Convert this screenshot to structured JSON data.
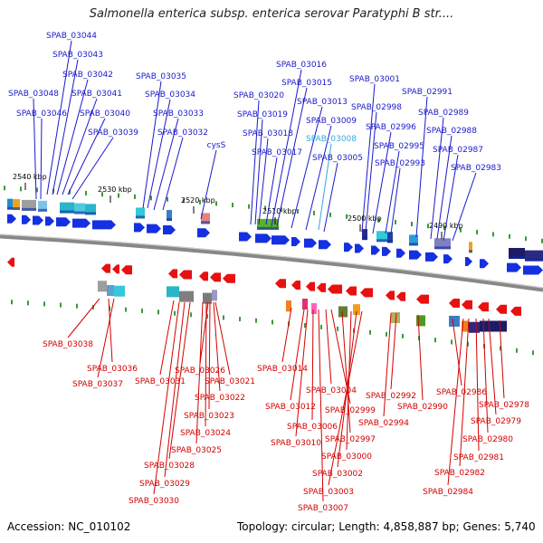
{
  "title": "Salmonella enterica subsp. enterica serovar Paratyphi B str....",
  "footer": {
    "accession": "Accession: NC_010102",
    "topology": "Topology: circular; Length: 4,858,887 bp; Genes: 5,740"
  },
  "colors": {
    "forward_label": "#1a1acc",
    "reverse_label": "#d40000",
    "highlight_label": "#33aadd",
    "backbone": "#888888"
  },
  "scale_ticks": [
    "2540 kbp",
    "2530 kbp",
    "2520 kbp",
    "2510 kbp",
    "2500 kbp",
    "2490 kbp"
  ],
  "forward_labels": [
    {
      "text": "SPAB_03044"
    },
    {
      "text": "SPAB_03043"
    },
    {
      "text": "SPAB_03042"
    },
    {
      "text": "SPAB_03048"
    },
    {
      "text": "SPAB_03041"
    },
    {
      "text": "SPAB_03046"
    },
    {
      "text": "SPAB_03040"
    },
    {
      "text": "SPAB_03039"
    },
    {
      "text": "SPAB_03035"
    },
    {
      "text": "SPAB_03034"
    },
    {
      "text": "SPAB_03033"
    },
    {
      "text": "SPAB_03032"
    },
    {
      "text": "cysS"
    },
    {
      "text": "SPAB_03016"
    },
    {
      "text": "SPAB_03015"
    },
    {
      "text": "SPAB_03020"
    },
    {
      "text": "SPAB_03013"
    },
    {
      "text": "SPAB_03019"
    },
    {
      "text": "SPAB_03009"
    },
    {
      "text": "SPAB_03018"
    },
    {
      "text": "SPAB_03008",
      "highlight": true
    },
    {
      "text": "SPAB_03017"
    },
    {
      "text": "SPAB_03005"
    },
    {
      "text": "SPAB_03001"
    },
    {
      "text": "SPAB_02998"
    },
    {
      "text": "SPAB_02996"
    },
    {
      "text": "SPAB_02995"
    },
    {
      "text": "SPAB_02993"
    },
    {
      "text": "SPAB_02991"
    },
    {
      "text": "SPAB_02989"
    },
    {
      "text": "SPAB_02988"
    },
    {
      "text": "SPAB_02987"
    },
    {
      "text": "SPAB_02983"
    }
  ],
  "reverse_labels": [
    {
      "text": "SPAB_03038"
    },
    {
      "text": "SPAB_03036"
    },
    {
      "text": "SPAB_03037"
    },
    {
      "text": "SPAB_03031"
    },
    {
      "text": "SPAB_03026"
    },
    {
      "text": "SPAB_03021"
    },
    {
      "text": "SPAB_03022"
    },
    {
      "text": "SPAB_03023"
    },
    {
      "text": "SPAB_03024"
    },
    {
      "text": "SPAB_03025"
    },
    {
      "text": "SPAB_03028"
    },
    {
      "text": "SPAB_03029"
    },
    {
      "text": "SPAB_03030"
    },
    {
      "text": "SPAB_03014"
    },
    {
      "text": "SPAB_03012"
    },
    {
      "text": "SPAB_03006"
    },
    {
      "text": "SPAB_03010"
    },
    {
      "text": "SPAB_03007"
    },
    {
      "text": "SPAB_03004"
    },
    {
      "text": "SPAB_02999"
    },
    {
      "text": "SPAB_02997"
    },
    {
      "text": "SPAB_03000"
    },
    {
      "text": "SPAB_03002"
    },
    {
      "text": "SPAB_03003"
    },
    {
      "text": "SPAB_02992"
    },
    {
      "text": "SPAB_02994"
    },
    {
      "text": "SPAB_02990"
    },
    {
      "text": "SPAB_02986"
    },
    {
      "text": "SPAB_02978"
    },
    {
      "text": "SPAB_02979"
    },
    {
      "text": "SPAB_02980"
    },
    {
      "text": "SPAB_02981"
    },
    {
      "text": "SPAB_02982"
    },
    {
      "text": "SPAB_02984"
    }
  ]
}
